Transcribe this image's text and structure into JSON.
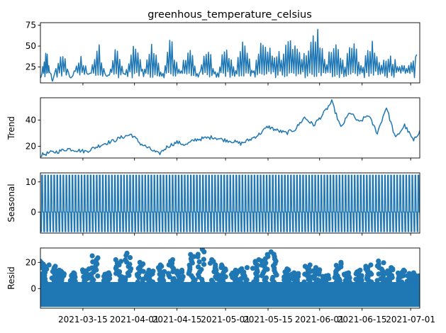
{
  "figure_title": "greenhous_temperature_celsius",
  "series_color": "#1f77b4",
  "x_axis": {
    "domain": [
      "2021-03-01",
      "2021-07-04"
    ],
    "tick_labels": [
      "2021-03-15",
      "2021-04-01",
      "2021-04-15",
      "2021-05-01",
      "2021-05-15",
      "2021-06-01",
      "2021-06-15",
      "2021-07-01"
    ],
    "tick_dates": [
      "2021-03-15",
      "2021-04-01",
      "2021-04-15",
      "2021-05-01",
      "2021-05-15",
      "2021-06-01",
      "2021-06-15",
      "2021-07-01"
    ]
  },
  "chart_data": [
    {
      "id": "observed",
      "type": "line",
      "title": "greenhous_temperature_celsius",
      "ylabel": "",
      "ylim": [
        6,
        78
      ],
      "yticks": [
        25,
        50,
        75
      ],
      "x": [
        "2021-03-01",
        "2021-03-03",
        "2021-03-05",
        "2021-03-08",
        "2021-03-11",
        "2021-03-14",
        "2021-03-17",
        "2021-03-20",
        "2021-03-23",
        "2021-03-26",
        "2021-03-29",
        "2021-04-01",
        "2021-04-04",
        "2021-04-07",
        "2021-04-10",
        "2021-04-13",
        "2021-04-16",
        "2021-04-19",
        "2021-04-22",
        "2021-04-25",
        "2021-04-28",
        "2021-05-01",
        "2021-05-04",
        "2021-05-07",
        "2021-05-10",
        "2021-05-13",
        "2021-05-16",
        "2021-05-19",
        "2021-05-22",
        "2021-05-25",
        "2021-05-28",
        "2021-05-31",
        "2021-06-03",
        "2021-06-06",
        "2021-06-09",
        "2021-06-12",
        "2021-06-15",
        "2021-06-18",
        "2021-06-21",
        "2021-06-24",
        "2021-06-27",
        "2021-06-30",
        "2021-07-03"
      ],
      "y": [
        12,
        45,
        8,
        48,
        12,
        40,
        18,
        55,
        14,
        50,
        16,
        58,
        20,
        55,
        14,
        60,
        18,
        56,
        15,
        52,
        18,
        55,
        20,
        60,
        22,
        62,
        44,
        42,
        55,
        46,
        40,
        74,
        30,
        65,
        28,
        65,
        24,
        58,
        28,
        45,
        25,
        30,
        40
      ]
    },
    {
      "id": "trend",
      "type": "line",
      "ylabel": "Trend",
      "ylim": [
        11,
        57
      ],
      "yticks": [
        20,
        40
      ],
      "x": [
        "2021-03-01",
        "2021-03-04",
        "2021-03-07",
        "2021-03-10",
        "2021-03-13",
        "2021-03-16",
        "2021-03-19",
        "2021-03-22",
        "2021-03-25",
        "2021-03-28",
        "2021-03-31",
        "2021-04-03",
        "2021-04-06",
        "2021-04-09",
        "2021-04-12",
        "2021-04-15",
        "2021-04-18",
        "2021-04-21",
        "2021-04-24",
        "2021-04-27",
        "2021-04-30",
        "2021-05-03",
        "2021-05-06",
        "2021-05-09",
        "2021-05-12",
        "2021-05-15",
        "2021-05-18",
        "2021-05-21",
        "2021-05-24",
        "2021-05-27",
        "2021-05-30",
        "2021-06-02",
        "2021-06-05",
        "2021-06-08",
        "2021-06-11",
        "2021-06-14",
        "2021-06-17",
        "2021-06-20",
        "2021-06-23",
        "2021-06-26",
        "2021-06-29",
        "2021-07-02",
        "2021-07-04"
      ],
      "y": [
        13,
        15,
        16,
        18,
        17,
        16,
        19,
        22,
        24,
        27,
        29,
        22,
        18,
        14,
        20,
        23,
        21,
        25,
        26,
        27,
        25,
        24,
        22,
        25,
        29,
        35,
        32,
        30,
        33,
        42,
        36,
        44,
        54,
        34,
        46,
        38,
        44,
        30,
        50,
        26,
        36,
        24,
        32
      ]
    },
    {
      "id": "seasonal",
      "type": "line",
      "ylabel": "Seasonal",
      "ylim": [
        -7,
        13
      ],
      "yticks": [
        0,
        10
      ],
      "period_days": 1,
      "amplitude_high": 12.2,
      "amplitude_low": -6.5
    },
    {
      "id": "resid",
      "type": "scatter",
      "ylabel": "Resid",
      "ylim": [
        -15,
        31
      ],
      "yticks": [
        0,
        20
      ],
      "band_low": -14,
      "band_high": 5,
      "x": [
        "2021-03-02",
        "2021-03-05",
        "2021-03-08",
        "2021-03-12",
        "2021-03-16",
        "2021-03-19",
        "2021-03-23",
        "2021-03-27",
        "2021-03-30",
        "2021-04-03",
        "2021-04-06",
        "2021-04-10",
        "2021-04-13",
        "2021-04-16",
        "2021-04-20",
        "2021-04-23",
        "2021-04-27",
        "2021-04-30",
        "2021-05-04",
        "2021-05-07",
        "2021-05-11",
        "2021-05-14",
        "2021-05-17",
        "2021-05-21",
        "2021-05-24",
        "2021-05-28",
        "2021-05-31",
        "2021-06-03",
        "2021-06-07",
        "2021-06-10",
        "2021-06-14",
        "2021-06-17",
        "2021-06-21",
        "2021-06-24",
        "2021-06-28",
        "2021-07-01",
        "2021-07-03"
      ],
      "y": [
        21,
        18,
        14,
        12,
        15,
        25,
        12,
        22,
        27,
        20,
        14,
        18,
        22,
        14,
        26,
        30,
        22,
        18,
        14,
        16,
        22,
        26,
        28,
        15,
        12,
        18,
        16,
        10,
        20,
        12,
        14,
        18,
        21,
        16,
        14,
        12,
        10
      ]
    }
  ]
}
